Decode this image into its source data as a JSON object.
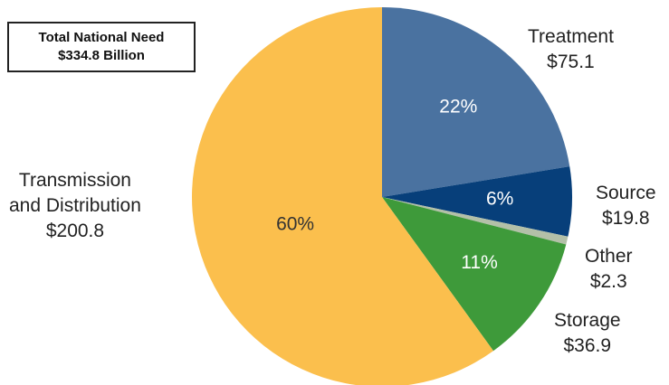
{
  "total_box": {
    "line1": "Total National Need",
    "line2": "$334.8 Billion"
  },
  "chart_data": {
    "type": "pie",
    "title": "Total National Need $334.8 Billion",
    "unit": "Billion $",
    "slices": [
      {
        "label": "Treatment",
        "value": 75.1,
        "value_label": "$75.1",
        "percent_label": "22%",
        "color": "#4a72a0"
      },
      {
        "label": "Source",
        "value": 19.8,
        "value_label": "$19.8",
        "percent_label": "6%",
        "color": "#073f7a"
      },
      {
        "label": "Other",
        "value": 2.3,
        "value_label": "$2.3",
        "percent_label": "",
        "color": "#b3c0a8"
      },
      {
        "label": "Storage",
        "value": 36.9,
        "value_label": "$36.9",
        "percent_label": "11%",
        "color": "#3e9a3a"
      },
      {
        "label": "Transmission and Distribution",
        "value": 200.8,
        "value_label": "$200.8",
        "percent_label": "60%",
        "color": "#fbbf4d"
      }
    ]
  },
  "labels": {
    "treatment": {
      "name": "Treatment",
      "value": "$75.1"
    },
    "source": {
      "name": "Source",
      "value": "$19.8"
    },
    "other": {
      "name": "Other",
      "value": "$2.3"
    },
    "storage": {
      "name": "Storage",
      "value": "$36.9"
    },
    "transmission": {
      "name1": "Transmission",
      "name2": "and Distribution",
      "value": "$200.8"
    }
  }
}
